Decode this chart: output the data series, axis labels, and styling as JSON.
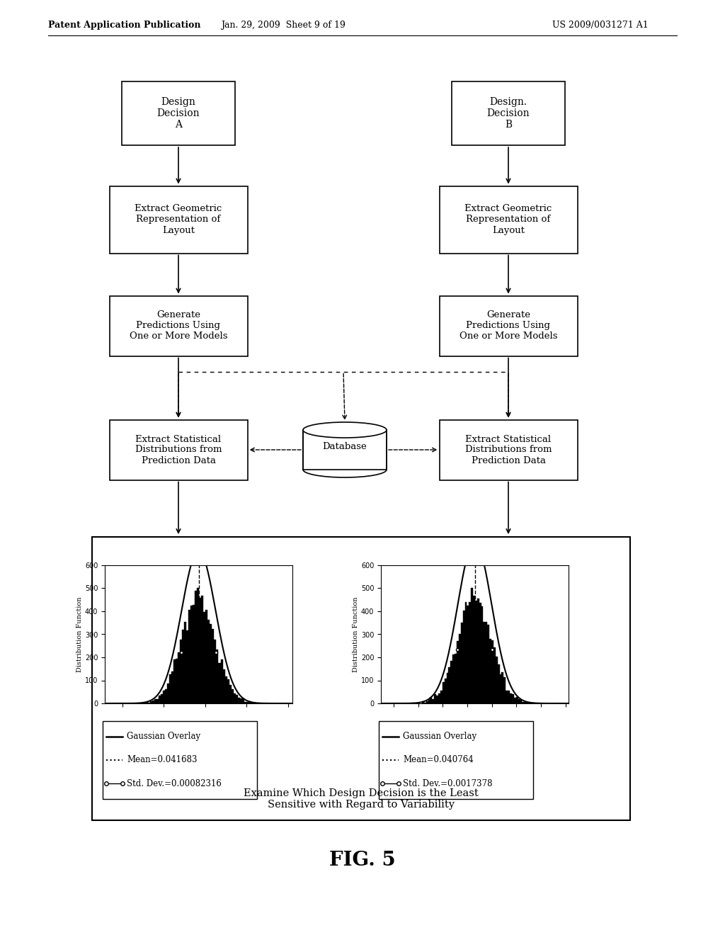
{
  "bg_color": "#ffffff",
  "header_left": "Patent Application Publication",
  "header_mid": "Jan. 29, 2009  Sheet 9 of 19",
  "header_right": "US 2009/0031271 A1",
  "fig_label": "FIG. 5",
  "box_A": "Design\nDecision\nA",
  "box_B": "Design.\nDecision\nB",
  "box_extract_A": "Extract Geometric\nRepresentation of\nLayout",
  "box_extract_B": "Extract Geometric\nRepresentation of\nLayout",
  "box_gen_A": "Generate\nPredictions Using\nOne or More Models",
  "box_gen_B": "Generate\nPredictions Using\nOne or More Models",
  "box_stat_A": "Extract Statistical\nDistributions from\nPrediction Data",
  "box_stat_B": "Extract Statistical\nDistributions from\nPrediction Data",
  "box_db": "Database",
  "bottom_text": "Examine Which Design Decision is the Least\nSensitive with Regard to Variability",
  "mean_A": 0.041683,
  "std_A": 0.00082316,
  "mean_B": 0.040764,
  "std_B": 0.0017378,
  "legend_A_l1": "Gaussian Overlay",
  "legend_A_l2": "Mean=0.041683",
  "legend_A_l3": "Std. Dev.=0.00082316",
  "legend_B_l1": "Gaussian Overlay",
  "legend_B_l2": "Mean=0.040764",
  "legend_B_l3": "Std. Dev.=0.0017378"
}
